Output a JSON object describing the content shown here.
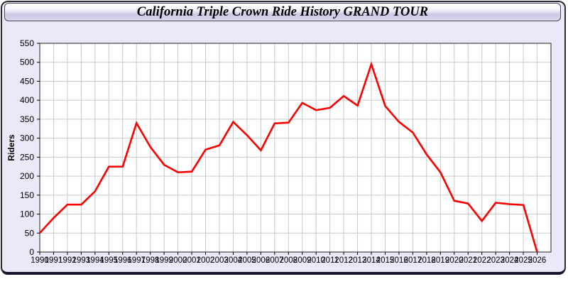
{
  "window": {
    "title": "California Triple Crown Ride History GRAND TOUR"
  },
  "chart_data": {
    "type": "line",
    "title": "California Triple Crown Ride History GRAND TOUR",
    "xlabel": "",
    "ylabel": "Riders",
    "x": [
      1990,
      1991,
      1992,
      1993,
      1994,
      1995,
      1996,
      1997,
      1998,
      1999,
      2000,
      2001,
      2002,
      2003,
      2004,
      2005,
      2006,
      2007,
      2008,
      2009,
      2010,
      2011,
      2012,
      2013,
      2014,
      2015,
      2016,
      2017,
      2018,
      2019,
      2020,
      2021,
      2022,
      2023,
      2024,
      2025,
      2026
    ],
    "series": [
      {
        "name": "Riders",
        "color": "#ff0000",
        "values": [
          50,
          90,
          125,
          125,
          160,
          225,
          225,
          340,
          277,
          230,
          210,
          212,
          270,
          281,
          343,
          308,
          268,
          339,
          341,
          393,
          374,
          380,
          411,
          386,
          495,
          385,
          343,
          315,
          257,
          210,
          135,
          128,
          82,
          130,
          126,
          124,
          0
        ]
      }
    ],
    "ylim": [
      0,
      550
    ],
    "yticks": [
      0,
      50,
      100,
      150,
      200,
      250,
      300,
      350,
      400,
      450,
      500,
      550
    ],
    "grid": true,
    "legend_position": "none",
    "plot_background": "#ffffff"
  },
  "colors": {
    "line": "#ff0000",
    "grid": "#c9c9c9",
    "plot_border": "#222222",
    "axis_text": "#000000",
    "panel_background": "#e9e9f7",
    "window_border": "#2b2b38",
    "titlebar_top": "#ffffff",
    "titlebar_bottom": "#cdc9e6"
  }
}
